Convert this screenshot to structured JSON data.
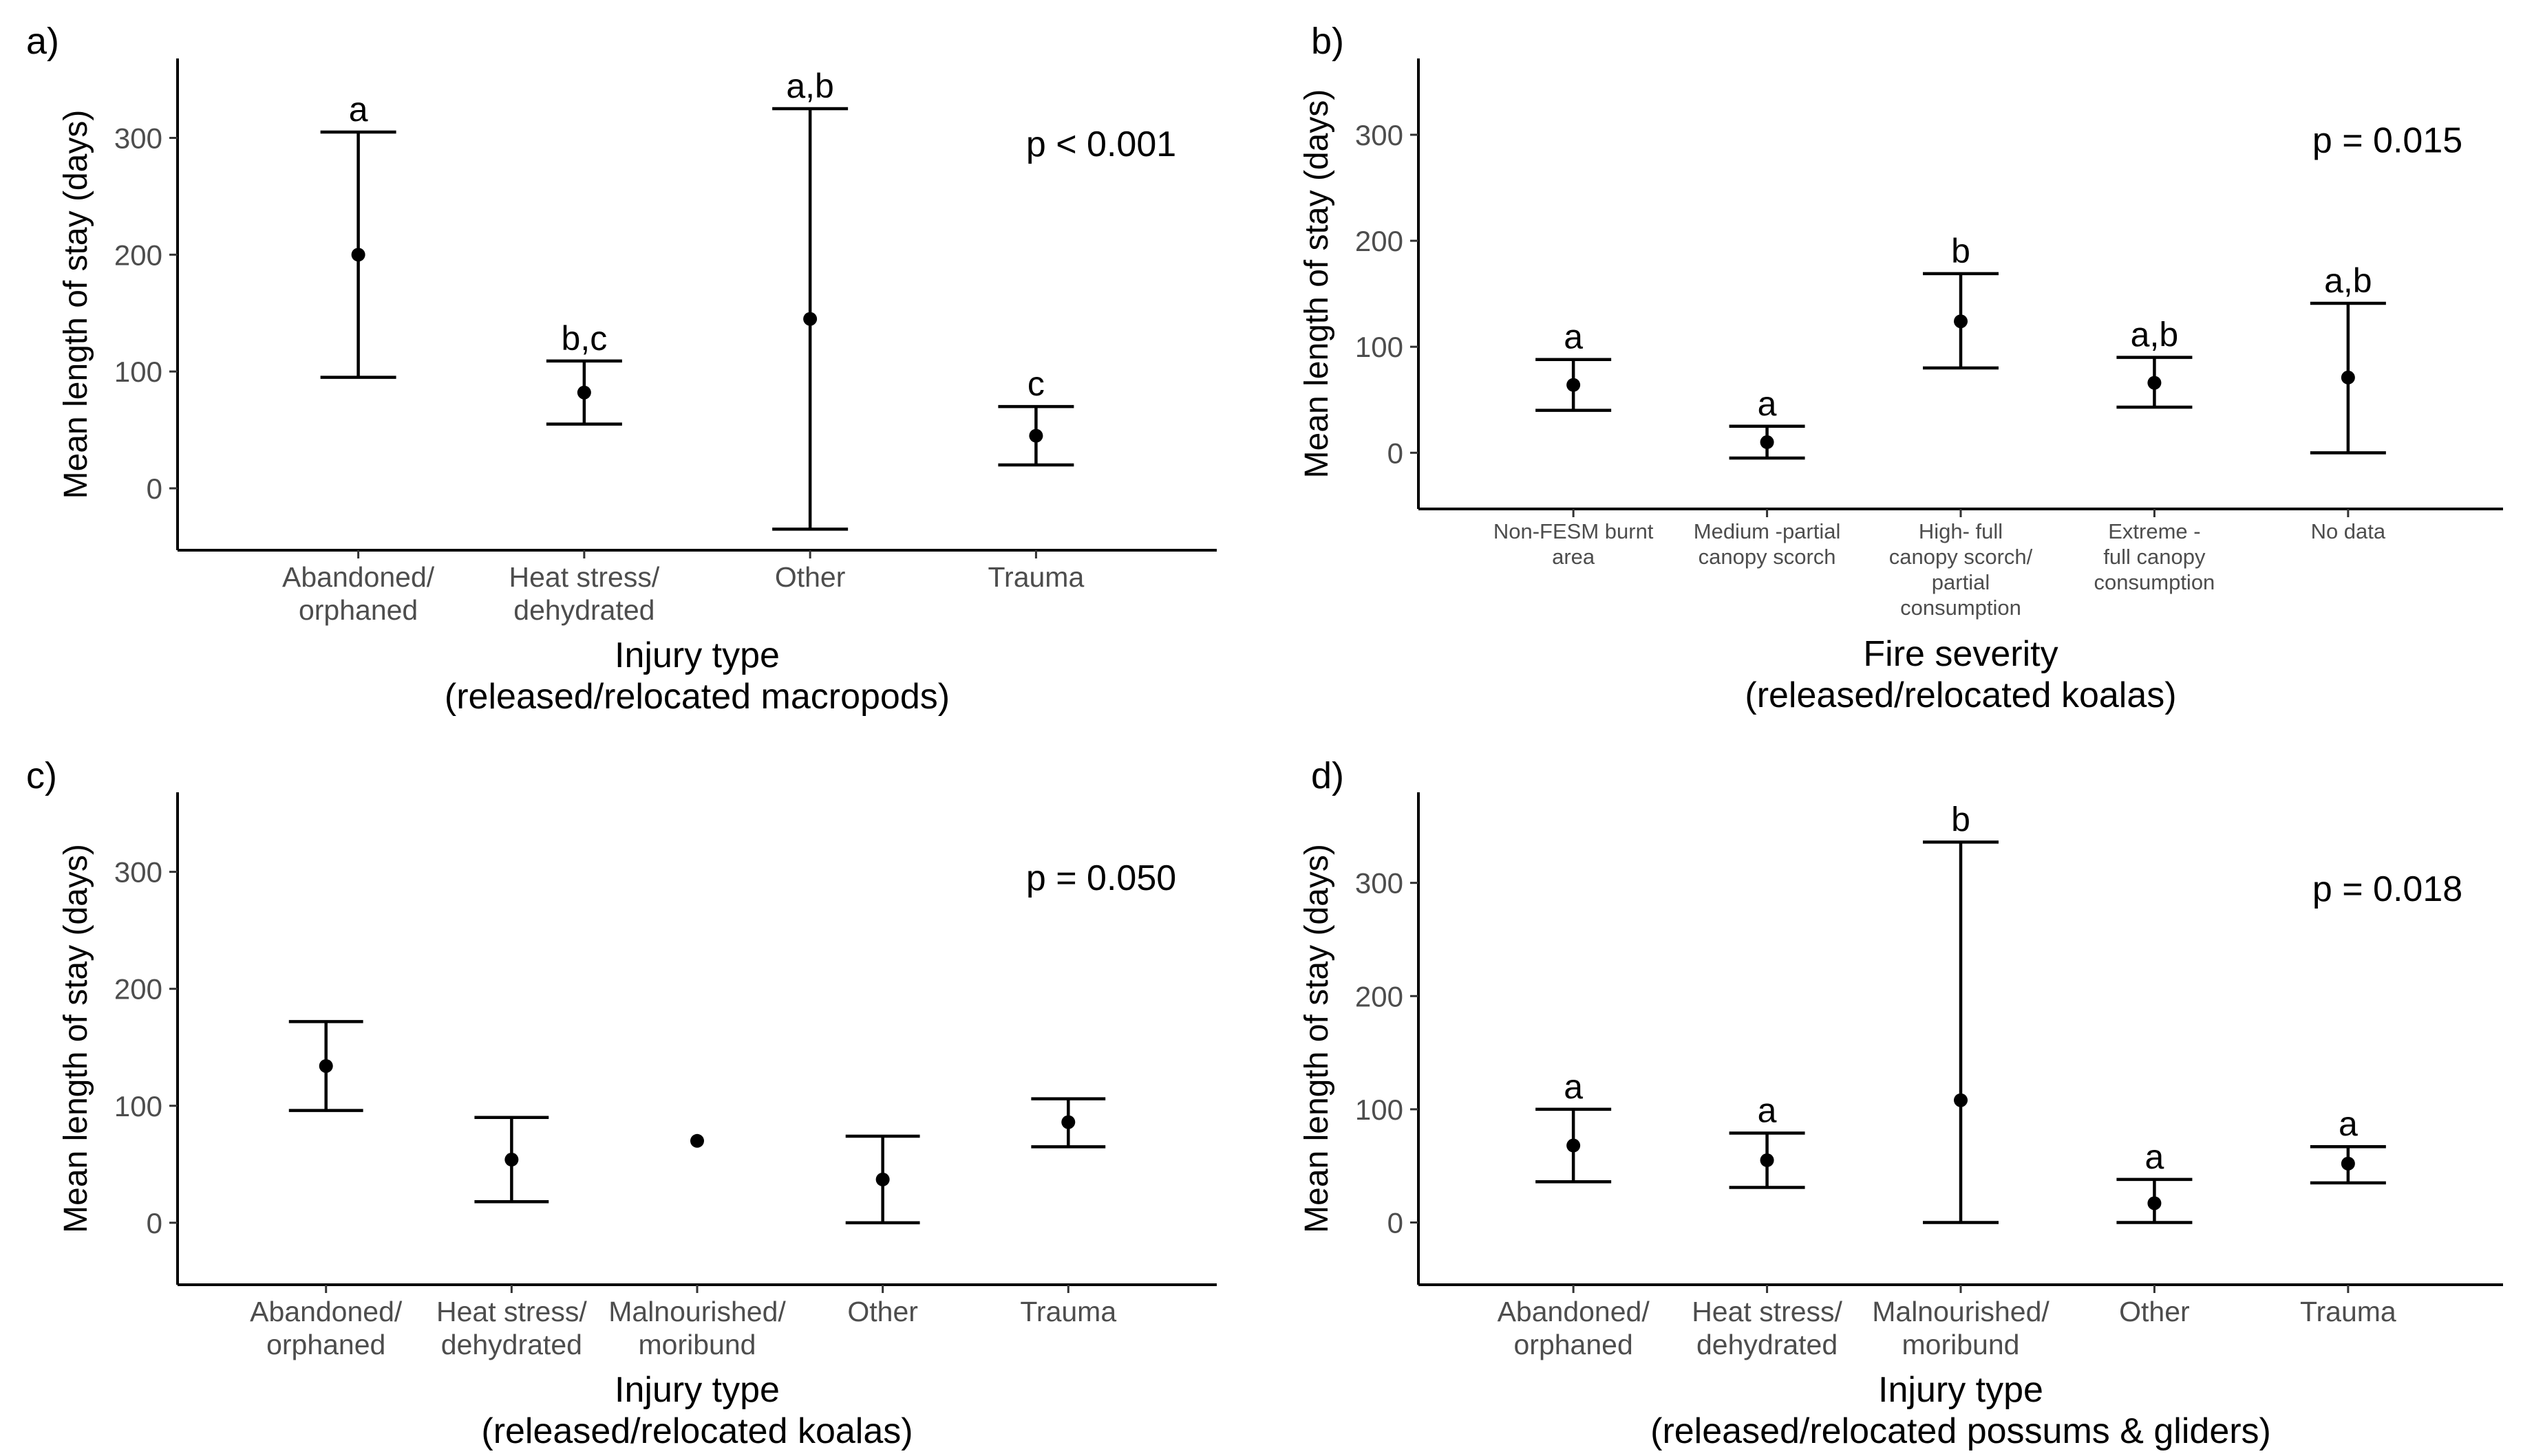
{
  "chart_data": [
    {
      "panel_label": "a)",
      "type": "errorbar",
      "categories": [
        "Abandoned/\norphaned",
        "Heat stress/\ndehydrated",
        "Other",
        "Trauma"
      ],
      "means": [
        200,
        82,
        145,
        45
      ],
      "lower": [
        95,
        55,
        -35,
        20
      ],
      "upper": [
        305,
        109,
        325,
        70
      ],
      "letters": [
        "a",
        "b,c",
        "a,b",
        "c"
      ],
      "p_value": "p < 0.001",
      "xlabel": "Injury type\n(released/relocated macropods)",
      "ylabel": "Mean length of stay (days)",
      "yticks": [
        "0",
        "100",
        "200",
        "300"
      ],
      "ylim": [
        -53,
        368
      ],
      "small_ticks": false
    },
    {
      "panel_label": "b)",
      "type": "errorbar",
      "categories": [
        "Non-FESM burnt\narea",
        "Medium -partial\ncanopy scorch",
        "High- full\ncanopy scorch/\npartial\nconsumption",
        "Extreme -\nfull canopy\nconsumption",
        "No data"
      ],
      "means": [
        64,
        10,
        124,
        66,
        71
      ],
      "lower": [
        40,
        -5,
        80,
        43,
        0
      ],
      "upper": [
        88,
        25,
        169,
        90,
        141
      ],
      "letters": [
        "a",
        "a",
        "b",
        "a,b",
        "a,b"
      ],
      "p_value": "p = 0.015",
      "xlabel": "Fire severity\n(released/relocated koalas)",
      "ylabel": "Mean length of stay (days)",
      "yticks": [
        "0",
        "100",
        "200",
        "300"
      ],
      "ylim": [
        -53,
        372
      ],
      "small_ticks": true
    },
    {
      "panel_label": "c)",
      "type": "errorbar",
      "categories": [
        "Abandoned/\norphaned",
        "Heat stress/\ndehydrated",
        "Malnourished/\nmoribund",
        "Other",
        "Trauma"
      ],
      "means": [
        134,
        54,
        70,
        37,
        86
      ],
      "lower": [
        96,
        18,
        70,
        0,
        65
      ],
      "upper": [
        172,
        90,
        70,
        74,
        106
      ],
      "letters": [
        "",
        "",
        "",
        "",
        ""
      ],
      "p_value": "p = 0.050",
      "xlabel": "Injury type\n(released/relocated koalas)",
      "ylabel": "Mean length of stay (days)",
      "yticks": [
        "0",
        "100",
        "200",
        "300"
      ],
      "ylim": [
        -53,
        368
      ],
      "small_ticks": false
    },
    {
      "panel_label": "d)",
      "type": "errorbar",
      "categories": [
        "Abandoned/\norphaned",
        "Heat stress/\ndehydrated",
        "Malnourished/\nmoribund",
        "Other",
        "Trauma"
      ],
      "means": [
        68,
        55,
        108,
        17,
        52
      ],
      "lower": [
        36,
        31,
        0,
        0,
        35
      ],
      "upper": [
        100,
        79,
        336,
        38,
        67
      ],
      "letters": [
        "a",
        "a",
        "b",
        "a",
        "a"
      ],
      "p_value": "p = 0.018",
      "xlabel": "Injury type\n(released/relocated possums & gliders)",
      "ylabel": "Mean length of stay (days)",
      "yticks": [
        "0",
        "100",
        "200",
        "300"
      ],
      "ylim": [
        -55,
        380
      ],
      "small_ticks": false
    }
  ]
}
